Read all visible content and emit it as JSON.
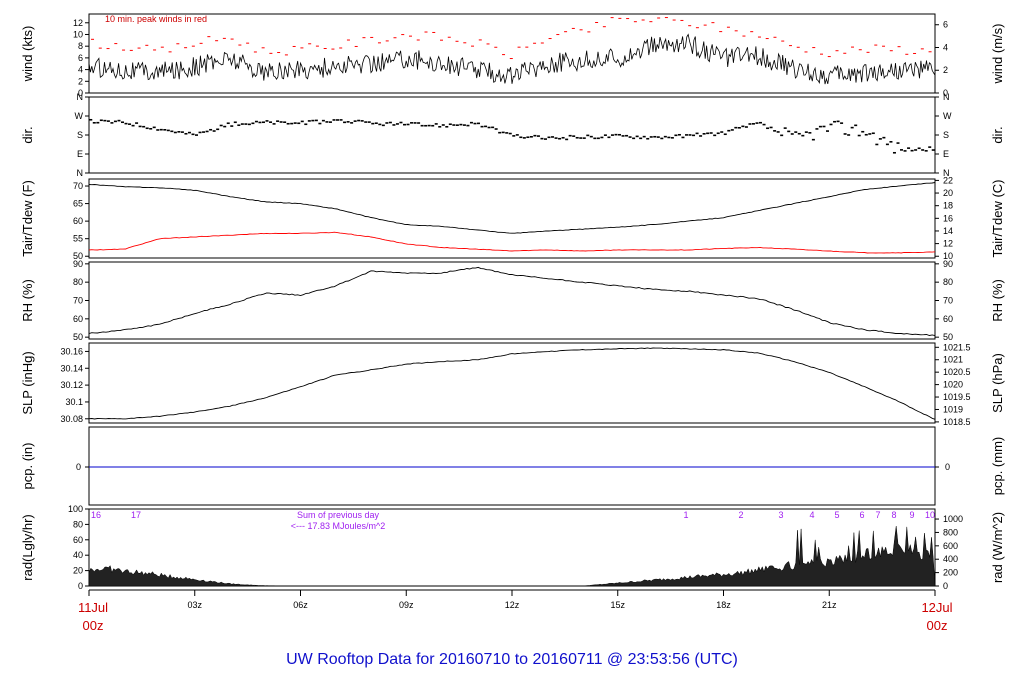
{
  "title": "UW Rooftop Data for 20160710  to  20160711 @ 23:53:56  (UTC)",
  "start_label": [
    "11Jul",
    "00z"
  ],
  "end_label": [
    "12Jul",
    "00z"
  ],
  "x_ticks": [
    "03z",
    "06z",
    "09z",
    "12z",
    "15z",
    "18z",
    "21z"
  ],
  "chart_data": [
    {
      "id": "wind",
      "type": "line",
      "ylabel": "wind (kts)",
      "ylabel_right": "wind (m/s)",
      "ylim": [
        0,
        13.5
      ],
      "yticks": [
        0,
        2,
        4,
        6,
        8,
        10,
        12
      ],
      "yticks_right": [
        0,
        2,
        4,
        6
      ],
      "annotation": "10 min. peak winds in red",
      "series": [
        {
          "color": "#000000",
          "style": "line",
          "x": [
            0,
            1,
            2,
            3,
            4,
            5,
            6,
            7,
            8,
            9,
            10,
            11,
            12,
            13,
            14,
            15,
            16,
            17,
            18,
            19,
            20,
            21,
            22,
            23,
            24
          ],
          "y": [
            4.5,
            4.0,
            3.5,
            4.5,
            6.0,
            3.5,
            4.0,
            4.5,
            5.0,
            6.0,
            5.0,
            4.0,
            3.0,
            5.0,
            5.5,
            6.0,
            8.0,
            8.5,
            6.0,
            6.5,
            4.0,
            3.0,
            3.5,
            4.0,
            4.0
          ]
        },
        {
          "color": "#ff0000",
          "style": "dash",
          "x": [
            0,
            1,
            2,
            3,
            4,
            5,
            6,
            7,
            8,
            9,
            10,
            11,
            12,
            13,
            14,
            15,
            16,
            17,
            18,
            19,
            20,
            21,
            22,
            23,
            24
          ],
          "y": [
            8.5,
            8.0,
            7.0,
            8.5,
            9.5,
            7.0,
            7.5,
            8.0,
            9.0,
            10.0,
            9.5,
            8.5,
            6.5,
            9.5,
            10.5,
            12.5,
            12.5,
            12.0,
            11.0,
            10.0,
            8.0,
            7.0,
            7.5,
            7.5,
            7.0
          ]
        }
      ]
    },
    {
      "id": "dir",
      "type": "scatter",
      "ylabel": "dir.",
      "ylabel_right": "dir.",
      "ylim": [
        0,
        360
      ],
      "yticks": [
        "N",
        "E",
        "S",
        "W",
        "N"
      ],
      "yticks_right": [
        "N",
        "E",
        "S",
        "W",
        "N"
      ],
      "series": [
        {
          "color": "#000000",
          "x": [
            0,
            1,
            2,
            3,
            4,
            5,
            6,
            7,
            8,
            9,
            10,
            11,
            12,
            13,
            14,
            15,
            16,
            17,
            18,
            19,
            20,
            21,
            22,
            23,
            24
          ],
          "y": [
            245,
            240,
            210,
            180,
            230,
            240,
            235,
            250,
            235,
            230,
            225,
            235,
            175,
            165,
            170,
            175,
            170,
            175,
            190,
            235,
            160,
            215,
            200,
            110,
            115
          ]
        }
      ]
    },
    {
      "id": "temp",
      "type": "line",
      "ylabel": "Tair/Tdew (F)",
      "ylabel_right": "Tair/Tdew (C)",
      "ylim": [
        49.5,
        72
      ],
      "yticks": [
        50,
        55,
        60,
        65,
        70
      ],
      "yticks_right": [
        10,
        12,
        14,
        16,
        18,
        20,
        22
      ],
      "series": [
        {
          "color": "#000000",
          "x": [
            0,
            1,
            2,
            3,
            4,
            5,
            6,
            7,
            8,
            9,
            10,
            11,
            12,
            13,
            14,
            15,
            16,
            17,
            18,
            19,
            20,
            21,
            22,
            23,
            24
          ],
          "y": [
            70.5,
            69.8,
            69.5,
            68.8,
            67.0,
            65.5,
            65.0,
            63.5,
            61.0,
            59.0,
            58.5,
            57.5,
            56.5,
            57.2,
            57.7,
            58.3,
            59.0,
            60.0,
            61.0,
            63.0,
            65.0,
            67.0,
            69.0,
            70.0,
            71.0
          ]
        },
        {
          "color": "#ff0000",
          "x": [
            0,
            1,
            2,
            3,
            4,
            5,
            6,
            7,
            8,
            9,
            10,
            11,
            12,
            13,
            14,
            15,
            16,
            17,
            18,
            19,
            20,
            21,
            22,
            23,
            24
          ],
          "y": [
            51.8,
            52.0,
            55.0,
            55.5,
            56.0,
            56.5,
            56.5,
            56.8,
            55.5,
            53.5,
            52.5,
            52.0,
            51.5,
            51.8,
            51.5,
            51.8,
            51.8,
            51.8,
            52.2,
            52.5,
            52.0,
            51.5,
            51.0,
            51.0,
            51.2
          ]
        }
      ]
    },
    {
      "id": "rh",
      "type": "line",
      "ylabel": "RH (%)",
      "ylabel_right": "RH (%)",
      "ylim": [
        49,
        91
      ],
      "yticks": [
        50,
        60,
        70,
        80,
        90
      ],
      "yticks_right": [
        50,
        60,
        70,
        80,
        90
      ],
      "series": [
        {
          "color": "#000000",
          "x": [
            0,
            1,
            2,
            3,
            4,
            5,
            6,
            7,
            8,
            9,
            10,
            11,
            12,
            13,
            14,
            15,
            16,
            17,
            18,
            19,
            20,
            21,
            22,
            23,
            24
          ],
          "y": [
            52,
            54,
            57,
            63,
            68,
            74,
            73,
            78,
            86,
            85,
            85,
            88,
            84,
            82,
            80,
            78,
            76,
            75,
            73,
            71,
            65,
            58,
            54,
            52,
            51
          ]
        }
      ]
    },
    {
      "id": "slp",
      "type": "line",
      "ylabel": "SLP (inHg)",
      "ylabel_right": "SLP (hPa)",
      "ylim": [
        30.075,
        30.17
      ],
      "yticks": [
        30.08,
        30.1,
        30.12,
        30.14,
        30.16
      ],
      "yticks_right": [
        1018.5,
        1019,
        1019.5,
        1020,
        1020.5,
        1021,
        1021.5
      ],
      "series": [
        {
          "color": "#000000",
          "x": [
            0,
            1,
            2,
            3,
            4,
            5,
            6,
            7,
            8,
            9,
            10,
            11,
            12,
            13,
            14,
            15,
            16,
            17,
            18,
            19,
            20,
            21,
            22,
            23,
            24
          ],
          "y": [
            30.08,
            30.08,
            30.083,
            30.088,
            30.095,
            30.105,
            30.118,
            30.132,
            30.138,
            30.145,
            30.148,
            30.15,
            30.157,
            30.16,
            30.162,
            30.163,
            30.164,
            30.163,
            30.162,
            30.158,
            30.148,
            30.135,
            30.118,
            30.1,
            30.079
          ]
        }
      ]
    },
    {
      "id": "pcp",
      "type": "line",
      "ylabel": "pcp. (in)",
      "ylabel_right": "pcp. (mm)",
      "yticks": [
        0
      ],
      "yticks_right": [
        0
      ],
      "series": [
        {
          "color": "#0000cc",
          "x": [
            0,
            24
          ],
          "y": [
            0,
            0
          ]
        }
      ]
    },
    {
      "id": "rad",
      "type": "area",
      "ylabel": "rad(Lgly/hr)",
      "ylabel_right": "rad (W/m^2)",
      "ylim": [
        0,
        100
      ],
      "yticks": [
        0,
        20,
        40,
        60,
        80,
        100
      ],
      "yticks_right": [
        0,
        200,
        400,
        600,
        800,
        1000
      ],
      "annotation": [
        "Sum of previous day",
        "<--- 17.83 MJoules/m^2"
      ],
      "hour_labels": [
        "16",
        "17",
        "1",
        "2",
        "3",
        "4",
        "5",
        "6",
        "7",
        "8",
        "9",
        "10"
      ],
      "series": [
        {
          "color": "#000000",
          "x": [
            0,
            0.5,
            1,
            1.5,
            2,
            2.5,
            3,
            3.5,
            4,
            4.5,
            5,
            5.5,
            6,
            14,
            14.5,
            15,
            15.5,
            16,
            16.5,
            17,
            17.5,
            18,
            18.5,
            19,
            19.5,
            20,
            20.5,
            21,
            21.5,
            22,
            22.5,
            23,
            23.5,
            24
          ],
          "y": [
            22,
            24,
            20,
            18,
            15,
            12,
            9,
            6,
            3,
            1.5,
            0.5,
            0.2,
            0,
            0,
            2,
            4,
            6,
            8,
            10,
            12,
            14,
            16,
            18,
            22,
            24,
            28,
            30,
            33,
            36,
            42,
            50,
            48,
            42,
            40
          ]
        }
      ]
    }
  ]
}
